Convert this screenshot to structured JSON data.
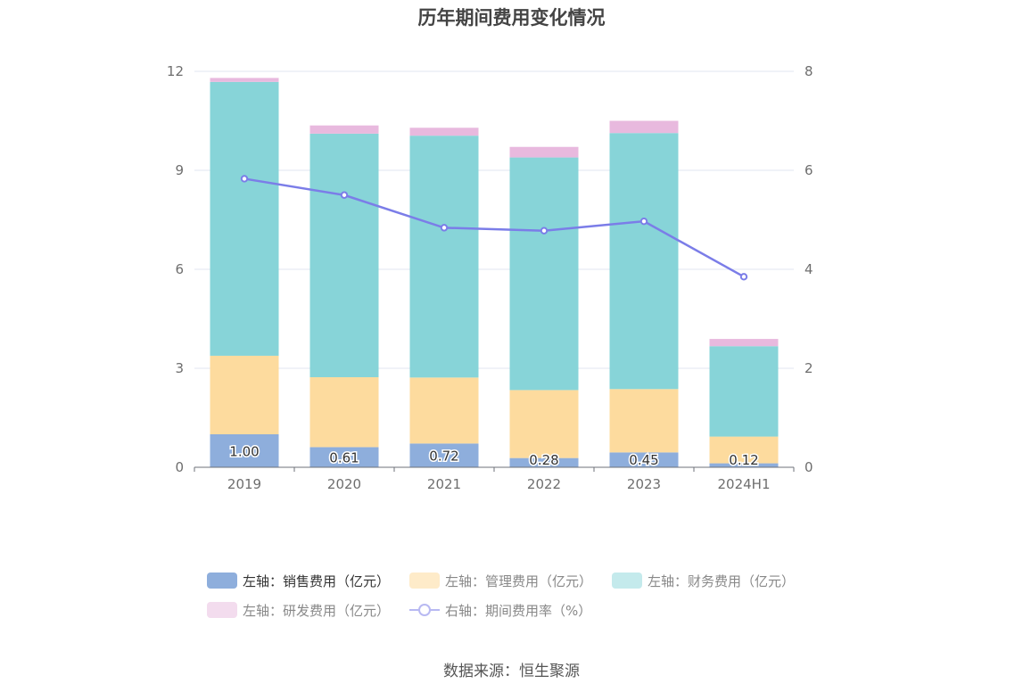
{
  "chart_data": {
    "type": "bar",
    "title": "历年期间费用变化情况",
    "categories": [
      "2019",
      "2020",
      "2021",
      "2022",
      "2023",
      "2024H1"
    ],
    "stacked": true,
    "series": [
      {
        "name": "左轴：销售费用（亿元）",
        "axis": "left",
        "type": "bar",
        "color": "#8eaedc",
        "values": [
          1.0,
          0.61,
          0.72,
          0.28,
          0.45,
          0.12
        ],
        "labels": [
          "1.00",
          "0.61",
          "0.72",
          "0.28",
          "0.45",
          "0.12"
        ]
      },
      {
        "name": "左轴：管理费用（亿元）",
        "axis": "left",
        "type": "bar",
        "color": "#fddb9e",
        "values": [
          2.38,
          2.12,
          2.0,
          2.06,
          1.92,
          0.81
        ]
      },
      {
        "name": "左轴：财务费用（亿元）",
        "axis": "left",
        "type": "bar",
        "color": "#87d4d8",
        "values": [
          8.3,
          7.38,
          7.33,
          7.05,
          7.76,
          2.74
        ]
      },
      {
        "name": "左轴：研发费用（亿元）",
        "axis": "left",
        "type": "bar",
        "color": "#e8b9de",
        "values": [
          0.12,
          0.25,
          0.24,
          0.32,
          0.37,
          0.22
        ]
      },
      {
        "name": "右轴：期间费用率（%）",
        "axis": "right",
        "type": "line",
        "color": "#7b7de8",
        "values": [
          5.83,
          5.5,
          4.84,
          4.78,
          4.97,
          3.85
        ]
      }
    ],
    "y_left": {
      "ylim": [
        0,
        12
      ],
      "ticks": [
        "0",
        "3",
        "6",
        "9",
        "12"
      ]
    },
    "y_right": {
      "ylim": [
        0,
        8
      ],
      "ticks": [
        "0",
        "2",
        "4",
        "6",
        "8"
      ]
    },
    "grid": true,
    "legend_placement": "bottom"
  },
  "source_text": "数据来源：恒生聚源"
}
